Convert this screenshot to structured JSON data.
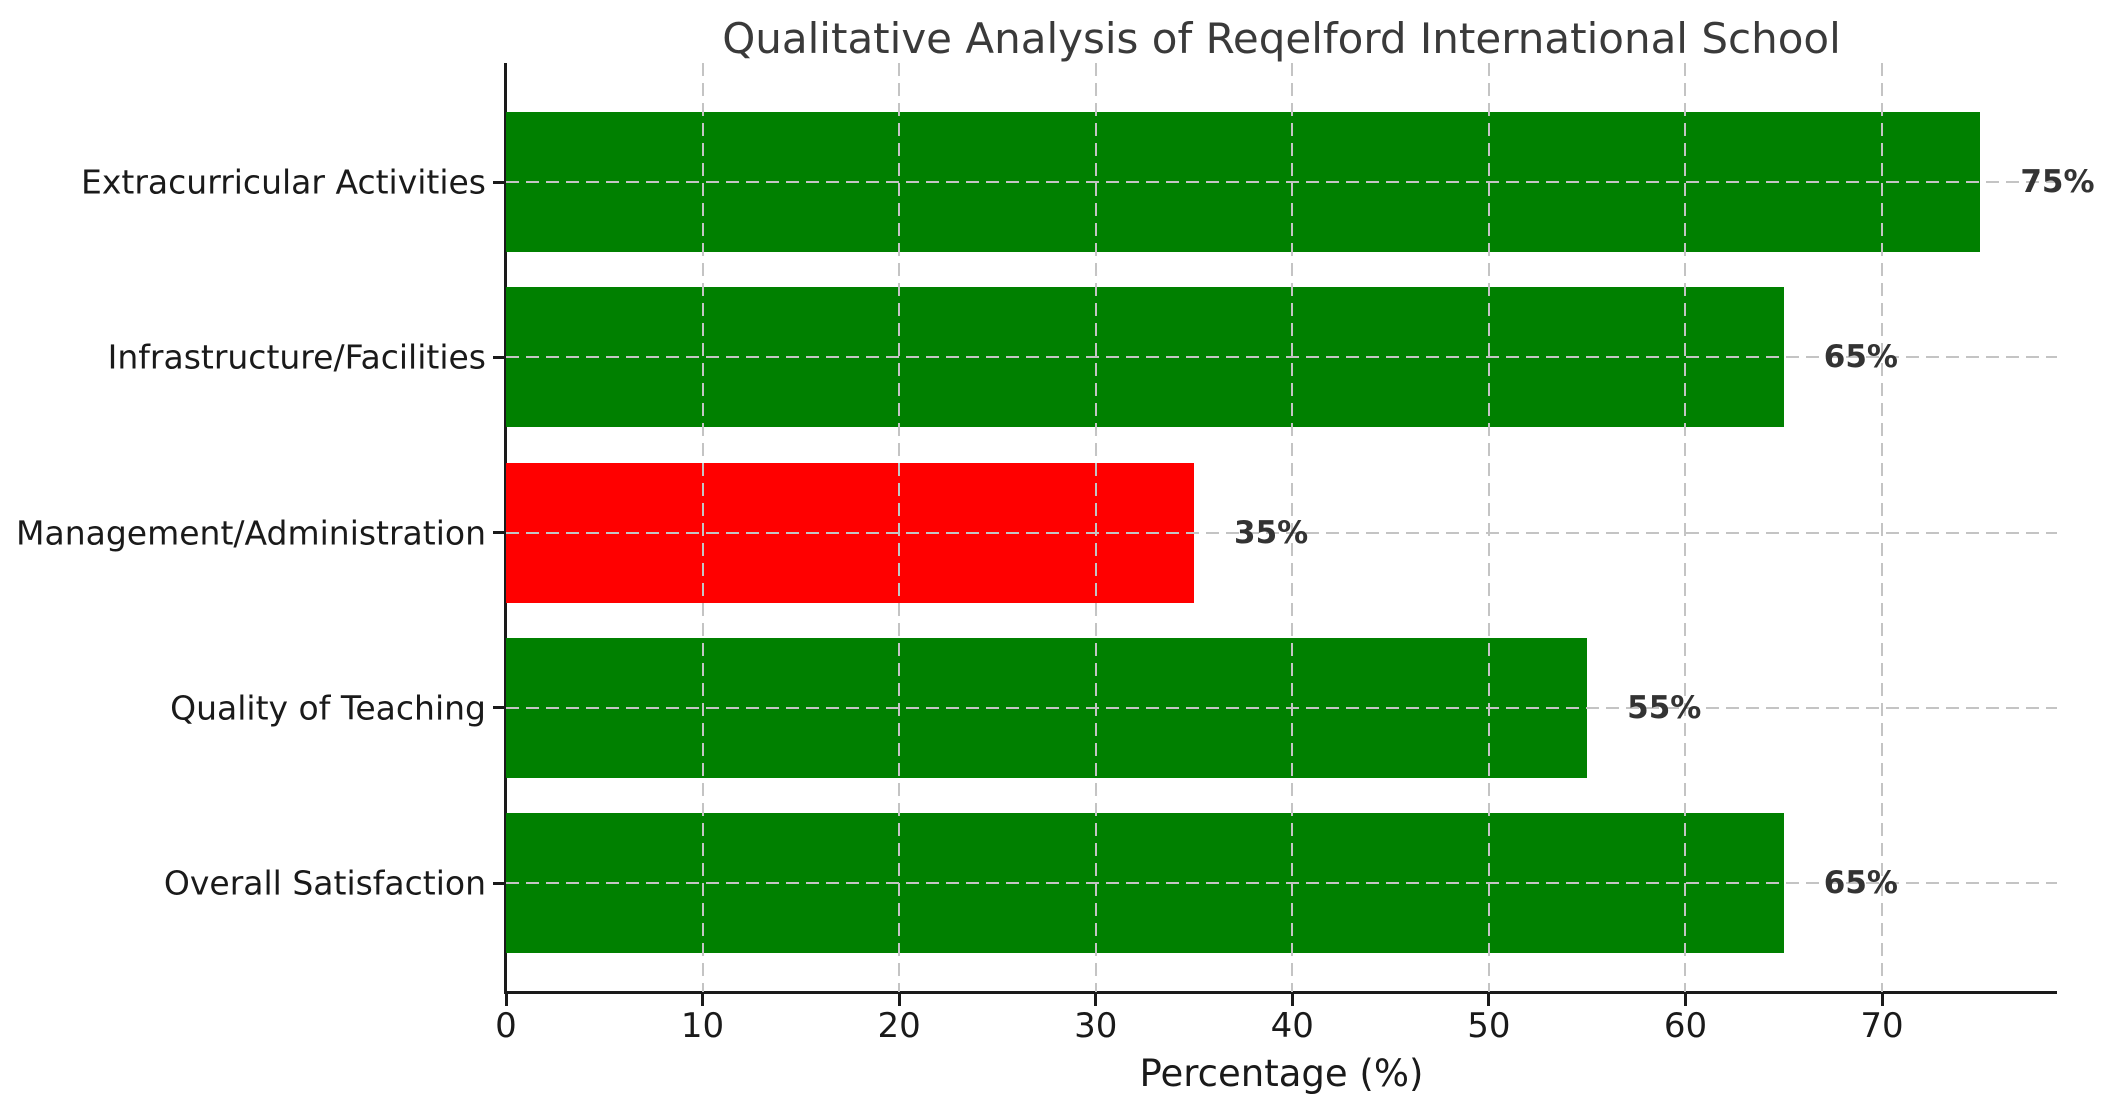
{
  "chart_data": {
    "type": "bar",
    "orientation": "horizontal",
    "title": "Qualitative Analysis of Reqelford International School",
    "xlabel": "Percentage (%)",
    "ylabel": "",
    "categories": [
      "Extracurricular Activities",
      "Infrastructure/Facilities",
      "Management/Administration",
      "Quality of Teaching",
      "Overall Satisfaction"
    ],
    "values": [
      75,
      65,
      35,
      55,
      65
    ],
    "value_labels": [
      "75%",
      "65%",
      "35%",
      "55%",
      "65%"
    ],
    "bar_colors": [
      "#008000",
      "#008000",
      "#ff0000",
      "#008000",
      "#008000"
    ],
    "x_ticks": [
      0,
      10,
      20,
      30,
      40,
      50,
      60,
      70
    ],
    "xlim": [
      0,
      78.9
    ],
    "grid": "dashed gridlines on both axes, drawn above bars",
    "legend": "none",
    "colors": {
      "positive_bar": "#008000",
      "negative_bar": "#ff0000",
      "gridline": "#c4c4c4",
      "axis_text": "#1a1a1a",
      "title_text": "#3a3a3a",
      "value_label_text": "#333333",
      "background": "#ffffff"
    }
  }
}
